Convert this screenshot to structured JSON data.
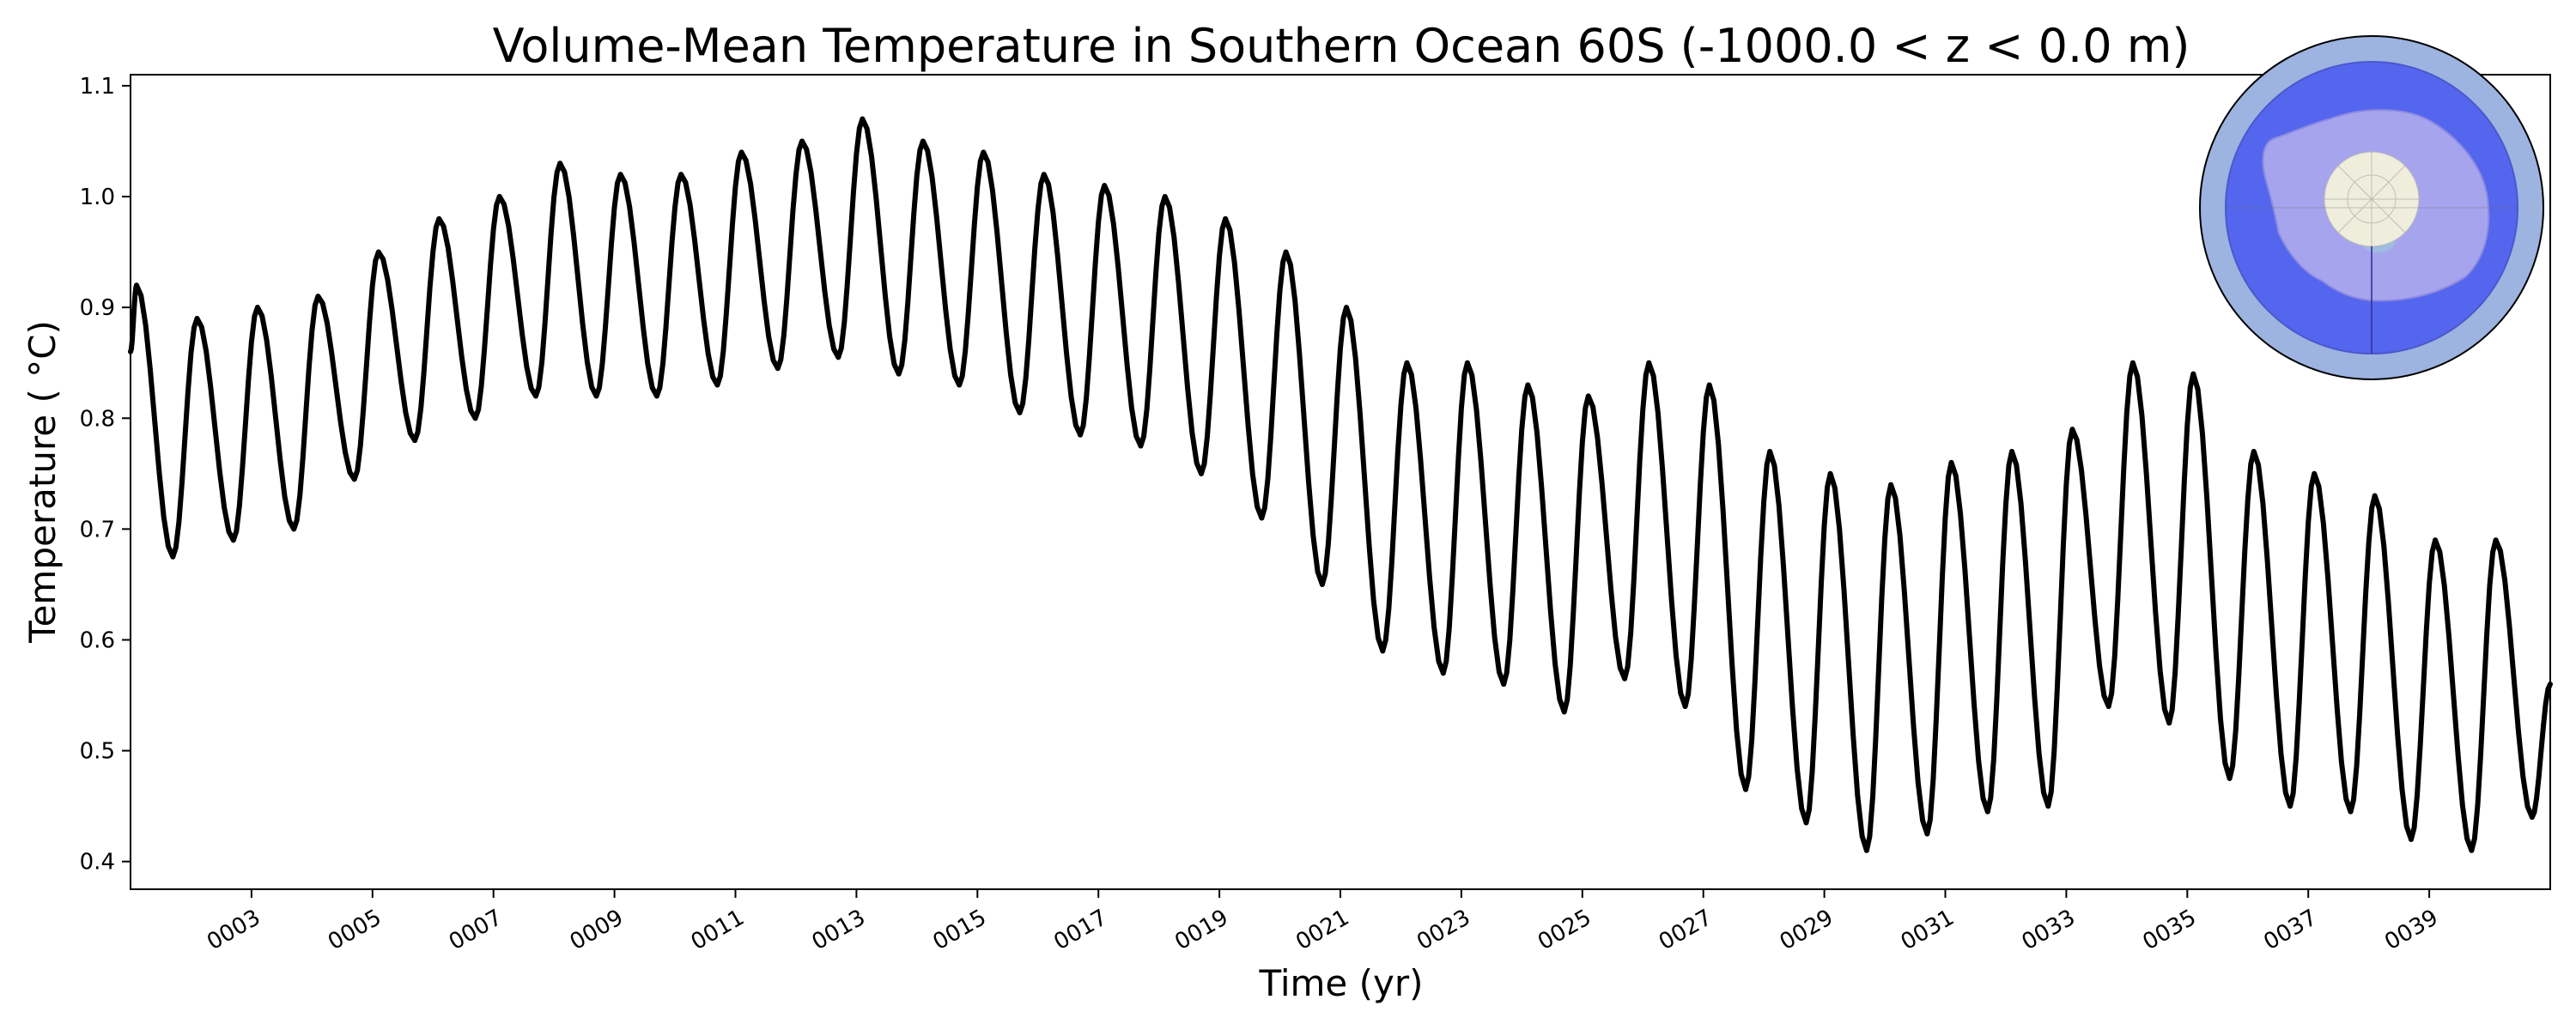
{
  "chart_data": {
    "type": "line",
    "title": "Volume-Mean Temperature in Southern Ocean 60S (-1000.0 < z < 0.0 m)",
    "xlabel": "Time (yr)",
    "ylabel": "Temperature ( °C)",
    "xlim": [
      1.0,
      41.0
    ],
    "ylim": [
      0.375,
      1.11
    ],
    "grid": false,
    "yticks": [
      0.4,
      0.5,
      0.6,
      0.7,
      0.8,
      0.9,
      1.0,
      1.1
    ],
    "ytick_labels": [
      "0.4",
      "0.5",
      "0.6",
      "0.7",
      "0.8",
      "0.9",
      "1.0",
      "1.1"
    ],
    "xticks": [
      3,
      5,
      7,
      9,
      11,
      13,
      15,
      17,
      19,
      21,
      23,
      25,
      27,
      29,
      31,
      33,
      35,
      37,
      39
    ],
    "xtick_labels": [
      "0003",
      "0005",
      "0007",
      "0009",
      "0011",
      "0013",
      "0015",
      "0017",
      "0019",
      "0021",
      "0023",
      "0025",
      "0027",
      "0029",
      "0031",
      "0033",
      "0035",
      "0037",
      "0039"
    ],
    "series": [
      {
        "name": "Volume-mean temperature",
        "color": "#000000",
        "yearly_peaks": [
          {
            "x": 1.1,
            "y": 0.92
          },
          {
            "x": 2.1,
            "y": 0.89
          },
          {
            "x": 3.1,
            "y": 0.9
          },
          {
            "x": 4.1,
            "y": 0.91
          },
          {
            "x": 5.1,
            "y": 0.95
          },
          {
            "x": 6.1,
            "y": 0.98
          },
          {
            "x": 7.1,
            "y": 1.0
          },
          {
            "x": 8.1,
            "y": 1.03
          },
          {
            "x": 9.1,
            "y": 1.02
          },
          {
            "x": 10.1,
            "y": 1.02
          },
          {
            "x": 11.1,
            "y": 1.04
          },
          {
            "x": 12.1,
            "y": 1.05
          },
          {
            "x": 13.1,
            "y": 1.07
          },
          {
            "x": 14.1,
            "y": 1.05
          },
          {
            "x": 15.1,
            "y": 1.04
          },
          {
            "x": 16.1,
            "y": 1.02
          },
          {
            "x": 17.1,
            "y": 1.01
          },
          {
            "x": 18.1,
            "y": 1.0
          },
          {
            "x": 19.1,
            "y": 0.98
          },
          {
            "x": 20.1,
            "y": 0.95
          },
          {
            "x": 21.1,
            "y": 0.9
          },
          {
            "x": 22.1,
            "y": 0.85
          },
          {
            "x": 23.1,
            "y": 0.85
          },
          {
            "x": 24.1,
            "y": 0.83
          },
          {
            "x": 25.1,
            "y": 0.82
          },
          {
            "x": 26.1,
            "y": 0.85
          },
          {
            "x": 27.1,
            "y": 0.83
          },
          {
            "x": 28.1,
            "y": 0.77
          },
          {
            "x": 29.1,
            "y": 0.75
          },
          {
            "x": 30.1,
            "y": 0.74
          },
          {
            "x": 31.1,
            "y": 0.76
          },
          {
            "x": 32.1,
            "y": 0.77
          },
          {
            "x": 33.1,
            "y": 0.79
          },
          {
            "x": 34.1,
            "y": 0.85
          },
          {
            "x": 35.1,
            "y": 0.84
          },
          {
            "x": 36.1,
            "y": 0.77
          },
          {
            "x": 37.1,
            "y": 0.75
          },
          {
            "x": 38.1,
            "y": 0.73
          },
          {
            "x": 39.1,
            "y": 0.69
          },
          {
            "x": 40.1,
            "y": 0.69
          }
        ],
        "yearly_troughs": [
          {
            "x": 1.7,
            "y": 0.675
          },
          {
            "x": 2.7,
            "y": 0.69
          },
          {
            "x": 3.7,
            "y": 0.7
          },
          {
            "x": 4.7,
            "y": 0.745
          },
          {
            "x": 5.7,
            "y": 0.78
          },
          {
            "x": 6.7,
            "y": 0.8
          },
          {
            "x": 7.7,
            "y": 0.82
          },
          {
            "x": 8.7,
            "y": 0.82
          },
          {
            "x": 9.7,
            "y": 0.82
          },
          {
            "x": 10.7,
            "y": 0.83
          },
          {
            "x": 11.7,
            "y": 0.845
          },
          {
            "x": 12.7,
            "y": 0.855
          },
          {
            "x": 13.7,
            "y": 0.84
          },
          {
            "x": 14.7,
            "y": 0.83
          },
          {
            "x": 15.7,
            "y": 0.805
          },
          {
            "x": 16.7,
            "y": 0.785
          },
          {
            "x": 17.7,
            "y": 0.775
          },
          {
            "x": 18.7,
            "y": 0.75
          },
          {
            "x": 19.7,
            "y": 0.71
          },
          {
            "x": 20.7,
            "y": 0.65
          },
          {
            "x": 21.7,
            "y": 0.59
          },
          {
            "x": 22.7,
            "y": 0.57
          },
          {
            "x": 23.7,
            "y": 0.56
          },
          {
            "x": 24.7,
            "y": 0.535
          },
          {
            "x": 25.7,
            "y": 0.565
          },
          {
            "x": 26.7,
            "y": 0.54
          },
          {
            "x": 27.7,
            "y": 0.465
          },
          {
            "x": 28.7,
            "y": 0.435
          },
          {
            "x": 29.7,
            "y": 0.41
          },
          {
            "x": 30.7,
            "y": 0.425
          },
          {
            "x": 31.7,
            "y": 0.445
          },
          {
            "x": 32.7,
            "y": 0.45
          },
          {
            "x": 33.7,
            "y": 0.54
          },
          {
            "x": 34.7,
            "y": 0.525
          },
          {
            "x": 35.7,
            "y": 0.475
          },
          {
            "x": 36.7,
            "y": 0.45
          },
          {
            "x": 37.7,
            "y": 0.445
          },
          {
            "x": 38.7,
            "y": 0.42
          },
          {
            "x": 39.7,
            "y": 0.41
          },
          {
            "x": 40.7,
            "y": 0.44
          }
        ],
        "start": {
          "x": 1.0,
          "y": 0.86
        },
        "end": {
          "x": 41.0,
          "y": 0.56
        }
      }
    ]
  },
  "inset_map": {
    "region": "Southern Ocean 60S",
    "colors": {
      "outer_ring": "#9db3e0",
      "ocean": "#5566ee",
      "land": "#a7a4ee",
      "pole": "#efeedd",
      "shelf": "#9fbde0"
    }
  }
}
